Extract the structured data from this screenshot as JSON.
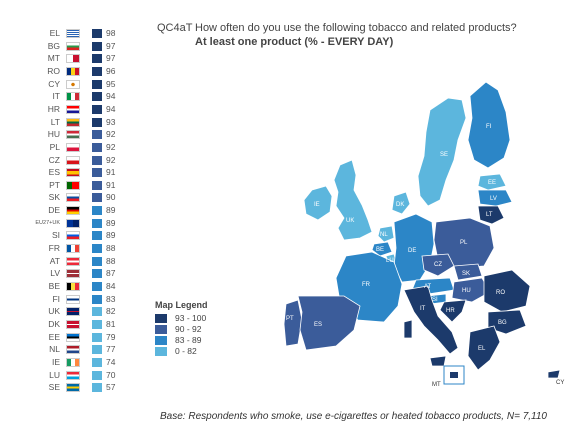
{
  "question": {
    "code": "QC4aT",
    "text": "How often do you use the following tobacco and related products?",
    "subtitle": "At least one product  (% - EVERY DAY)"
  },
  "legend": {
    "title": "Map Legend",
    "items": [
      {
        "label": "93 - 100",
        "color": "#1c3a6b"
      },
      {
        "label": "90 - 92",
        "color": "#3b5c9a"
      },
      {
        "label": "83 - 89",
        "color": "#2c86c7"
      },
      {
        "label": "0 - 82",
        "color": "#5cb6dd"
      }
    ]
  },
  "ranking": [
    {
      "code": "EL",
      "value": "98",
      "color": "#1c3a6b",
      "flag": "greece-flag"
    },
    {
      "code": "BG",
      "value": "97",
      "color": "#1c3a6b",
      "flag": "bulgaria-flag"
    },
    {
      "code": "MT",
      "value": "97",
      "color": "#1c3a6b",
      "flag": "malta-flag"
    },
    {
      "code": "RO",
      "value": "96",
      "color": "#1c3a6b",
      "flag": "romania-flag"
    },
    {
      "code": "CY",
      "value": "95",
      "color": "#1c3a6b",
      "flag": "cyprus-flag"
    },
    {
      "code": "IT",
      "value": "94",
      "color": "#1c3a6b",
      "flag": "italy-flag"
    },
    {
      "code": "HR",
      "value": "94",
      "color": "#1c3a6b",
      "flag": "croatia-flag"
    },
    {
      "code": "LT",
      "value": "93",
      "color": "#1c3a6b",
      "flag": "lithuania-flag"
    },
    {
      "code": "HU",
      "value": "92",
      "color": "#3b5c9a",
      "flag": "hungary-flag"
    },
    {
      "code": "PL",
      "value": "92",
      "color": "#3b5c9a",
      "flag": "poland-flag"
    },
    {
      "code": "CZ",
      "value": "92",
      "color": "#3b5c9a",
      "flag": "czechia-flag"
    },
    {
      "code": "ES",
      "value": "91",
      "color": "#3b5c9a",
      "flag": "spain-flag"
    },
    {
      "code": "PT",
      "value": "91",
      "color": "#3b5c9a",
      "flag": "portugal-flag"
    },
    {
      "code": "SK",
      "value": "90",
      "color": "#3b5c9a",
      "flag": "slovakia-flag"
    },
    {
      "code": "DE",
      "value": "89",
      "color": "#2c86c7",
      "flag": "germany-flag"
    },
    {
      "code": "EU27+UK",
      "value": "89",
      "color": "#2c86c7",
      "flag": "eu-flag"
    },
    {
      "code": "SI",
      "value": "89",
      "color": "#2c86c7",
      "flag": "slovenia-flag"
    },
    {
      "code": "FR",
      "value": "88",
      "color": "#2c86c7",
      "flag": "france-flag"
    },
    {
      "code": "AT",
      "value": "88",
      "color": "#2c86c7",
      "flag": "austria-flag"
    },
    {
      "code": "LV",
      "value": "87",
      "color": "#2c86c7",
      "flag": "latvia-flag"
    },
    {
      "code": "BE",
      "value": "84",
      "color": "#2c86c7",
      "flag": "belgium-flag"
    },
    {
      "code": "FI",
      "value": "83",
      "color": "#2c86c7",
      "flag": "finland-flag"
    },
    {
      "code": "UK",
      "value": "82",
      "color": "#5cb6dd",
      "flag": "uk-flag"
    },
    {
      "code": "DK",
      "value": "81",
      "color": "#5cb6dd",
      "flag": "denmark-flag"
    },
    {
      "code": "EE",
      "value": "79",
      "color": "#5cb6dd",
      "flag": "estonia-flag"
    },
    {
      "code": "NL",
      "value": "77",
      "color": "#5cb6dd",
      "flag": "netherlands-flag"
    },
    {
      "code": "IE",
      "value": "74",
      "color": "#5cb6dd",
      "flag": "ireland-flag"
    },
    {
      "code": "LU",
      "value": "70",
      "color": "#5cb6dd",
      "flag": "luxembourg-flag"
    },
    {
      "code": "SE",
      "value": "57",
      "color": "#5cb6dd",
      "flag": "sweden-flag"
    }
  ],
  "map_labels": {
    "fi": "FI",
    "se": "SE",
    "ee": "EE",
    "lv": "LV",
    "lt": "LT",
    "ie": "IE",
    "uk": "UK",
    "dk": "DK",
    "nl": "NL",
    "be": "BE",
    "lu": "LU",
    "de": "DE",
    "pl": "PL",
    "cz": "CZ",
    "sk": "SK",
    "at": "AT",
    "hu": "HU",
    "si": "SI",
    "hr": "HR",
    "ro": "RO",
    "bg": "BG",
    "fr": "FR",
    "pt": "PT",
    "es": "ES",
    "it": "IT",
    "el": "EL",
    "mt": "MT",
    "cy": "CY"
  },
  "base_note": "Base: Respondents who smoke, use e-cigarettes or heated tobacco products, N= 7,110"
}
